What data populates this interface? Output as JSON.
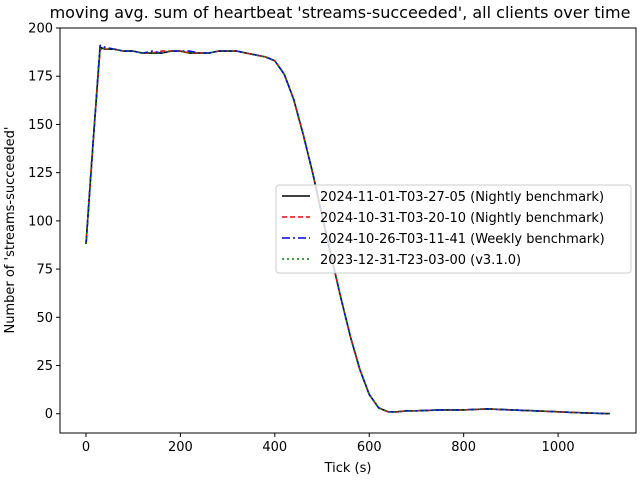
{
  "chart_data": {
    "type": "line",
    "title": "moving avg. sum of heartbeat 'streams-succeeded', all clients over time",
    "xlabel": "Tick (s)",
    "ylabel": "Number of 'streams-succeeded'",
    "xlim": [
      -55,
      1165
    ],
    "ylim": [
      -10,
      200
    ],
    "xticks": [
      0,
      200,
      400,
      600,
      800,
      1000
    ],
    "yticks": [
      0,
      25,
      50,
      75,
      100,
      125,
      150,
      175,
      200
    ],
    "grid": false,
    "legend_position": "center-right",
    "series": [
      {
        "name": "2024-11-01-T03-27-05 (Nightly benchmark)",
        "color": "#000000",
        "style": "solid",
        "x": [
          0,
          15,
          30,
          40,
          60,
          80,
          100,
          120,
          140,
          160,
          180,
          200,
          220,
          240,
          260,
          280,
          300,
          320,
          340,
          360,
          380,
          400,
          420,
          440,
          460,
          480,
          500,
          520,
          540,
          560,
          580,
          600,
          620,
          640,
          660,
          680,
          700,
          750,
          800,
          850,
          900,
          950,
          1000,
          1050,
          1110
        ],
        "values": [
          88,
          140,
          190,
          189,
          189,
          188,
          188,
          187,
          187,
          187,
          188,
          188,
          187,
          187,
          187,
          188,
          188,
          188,
          187,
          186,
          185,
          183,
          176,
          163,
          145,
          125,
          103,
          81,
          60,
          40,
          23,
          10,
          3,
          1,
          1,
          1.5,
          1.5,
          2,
          2,
          2.5,
          2,
          1.5,
          1,
          0.5,
          0
        ]
      },
      {
        "name": "2024-10-31-T03-20-10 (Nightly benchmark)",
        "color": "#ff0000",
        "style": "dashed",
        "x": [
          0,
          15,
          30,
          40,
          60,
          80,
          100,
          120,
          140,
          160,
          180,
          200,
          220,
          240,
          260,
          280,
          300,
          320,
          340,
          360,
          380,
          400,
          420,
          440,
          460,
          480,
          500,
          520,
          540,
          560,
          580,
          600,
          620,
          640,
          660,
          680,
          700,
          750,
          800,
          850,
          900,
          950,
          1000,
          1050,
          1110
        ],
        "values": [
          88,
          140,
          189,
          189,
          189,
          188,
          188,
          187,
          187,
          188,
          188,
          188,
          187,
          187,
          187,
          188,
          188,
          188,
          187,
          186,
          185,
          183,
          176,
          163,
          145,
          125,
          103,
          81,
          60,
          40,
          23,
          10,
          3,
          1,
          1,
          1.5,
          1.5,
          2,
          2,
          2.5,
          2,
          1.5,
          1,
          0.5,
          0
        ]
      },
      {
        "name": "2024-10-26-T03-11-41 (Weekly benchmark)",
        "color": "#0000ff",
        "style": "dashdot",
        "x": [
          0,
          15,
          30,
          40,
          60,
          80,
          100,
          120,
          140,
          160,
          180,
          200,
          220,
          240,
          260,
          280,
          300,
          320,
          340,
          360,
          380,
          400,
          420,
          440,
          460,
          480,
          500,
          520,
          540,
          560,
          580,
          600,
          620,
          640,
          660,
          680,
          700,
          750,
          800,
          850,
          900,
          950,
          1000,
          1050,
          1110
        ],
        "values": [
          88,
          140,
          191,
          190,
          189,
          188,
          188,
          187,
          188,
          187,
          188,
          188,
          188,
          187,
          187,
          188,
          188,
          188,
          187,
          186,
          185,
          183,
          176,
          163,
          145,
          125,
          103,
          81,
          60,
          40,
          23,
          10,
          3,
          1,
          1,
          1.5,
          1.5,
          2,
          2,
          2.5,
          2,
          1.5,
          1,
          0.5,
          0
        ]
      },
      {
        "name": "2023-12-31-T23-03-00 (v3.1.0)",
        "color": "#008000",
        "style": "dotted",
        "x": [
          0,
          15,
          30,
          40,
          60,
          80,
          100,
          120,
          140,
          160,
          180,
          200,
          220,
          240,
          260,
          280,
          300,
          320,
          340,
          360,
          380,
          400,
          420,
          440,
          460,
          480,
          500,
          520,
          540,
          560,
          580,
          600,
          620,
          640,
          660,
          680,
          700,
          750,
          800,
          850,
          900,
          950,
          1000,
          1050,
          1110
        ],
        "values": [
          88,
          140,
          190,
          189,
          189,
          188,
          188,
          187,
          187,
          187,
          188,
          188,
          187,
          187,
          187,
          188,
          188,
          188,
          187,
          186,
          185,
          183,
          176,
          163,
          145,
          125,
          103,
          81,
          60,
          40,
          23,
          10,
          3,
          1,
          1,
          1.5,
          1.5,
          2,
          2,
          2.5,
          2,
          1.5,
          1,
          0.5,
          0
        ]
      }
    ]
  }
}
